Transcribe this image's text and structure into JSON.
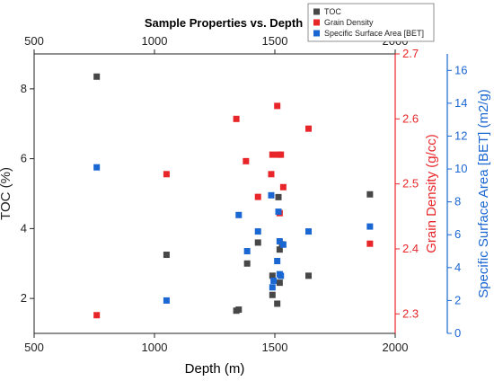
{
  "chart_data": {
    "type": "scatter",
    "title": "Sample Properties vs. Depth",
    "xlabel": "Depth (m)",
    "xlim": [
      500,
      2000
    ],
    "x_ticks": [
      "500",
      "1000",
      "1500",
      "2000"
    ],
    "axes": {
      "left": {
        "label": "TOC (%)",
        "lim": [
          1.0,
          9.0
        ],
        "ticks": [
          "2",
          "4",
          "6",
          "8"
        ],
        "color": "#222222"
      },
      "right": {
        "label": "Grain Density (g/cc)",
        "lim": [
          2.27,
          2.7
        ],
        "ticks": [
          "2.3",
          "2.4",
          "2.5",
          "2.6",
          "2.7"
        ],
        "color": "#e8262a"
      },
      "far_right": {
        "label": "Specific Surface Area [BET] (m2/g)",
        "lim": [
          0,
          17
        ],
        "ticks": [
          "0",
          "2",
          "4",
          "6",
          "8",
          "10",
          "12",
          "14",
          "16"
        ],
        "color": "#1a66d2"
      }
    },
    "legend_position": "top-right",
    "series": [
      {
        "name": "TOC",
        "axis": "left",
        "color": "#474747",
        "points": [
          [
            760,
            8.35
          ],
          [
            1050,
            3.25
          ],
          [
            1340,
            1.65
          ],
          [
            1350,
            1.68
          ],
          [
            1385,
            3.0
          ],
          [
            1430,
            3.6
          ],
          [
            1490,
            2.65
          ],
          [
            1490,
            2.1
          ],
          [
            1510,
            1.85
          ],
          [
            1515,
            4.9
          ],
          [
            1520,
            3.4
          ],
          [
            1520,
            2.45
          ],
          [
            1530,
            3.55
          ],
          [
            1640,
            2.65
          ],
          [
            1895,
            4.98
          ]
        ]
      },
      {
        "name": "Grain Density",
        "axis": "right",
        "color": "#e8262a",
        "points": [
          [
            760,
            2.298
          ],
          [
            1050,
            2.515
          ],
          [
            1340,
            2.6
          ],
          [
            1380,
            2.535
          ],
          [
            1430,
            2.48
          ],
          [
            1485,
            2.515
          ],
          [
            1490,
            2.545
          ],
          [
            1510,
            2.62
          ],
          [
            1515,
            2.545
          ],
          [
            1520,
            2.455
          ],
          [
            1525,
            2.545
          ],
          [
            1535,
            2.495
          ],
          [
            1640,
            2.585
          ],
          [
            1895,
            2.408
          ]
        ]
      },
      {
        "name": "Specific Surface Area [BET]",
        "axis": "far_right",
        "color": "#1a66d2",
        "points": [
          [
            760,
            10.1
          ],
          [
            1050,
            2.0
          ],
          [
            1350,
            7.2
          ],
          [
            1385,
            5.0
          ],
          [
            1430,
            6.2
          ],
          [
            1485,
            8.4
          ],
          [
            1490,
            2.8
          ],
          [
            1495,
            3.2
          ],
          [
            1510,
            4.4
          ],
          [
            1515,
            7.4
          ],
          [
            1520,
            5.6
          ],
          [
            1520,
            3.6
          ],
          [
            1525,
            3.5
          ],
          [
            1535,
            5.4
          ],
          [
            1640,
            6.2
          ],
          [
            1895,
            6.5
          ]
        ]
      }
    ]
  }
}
